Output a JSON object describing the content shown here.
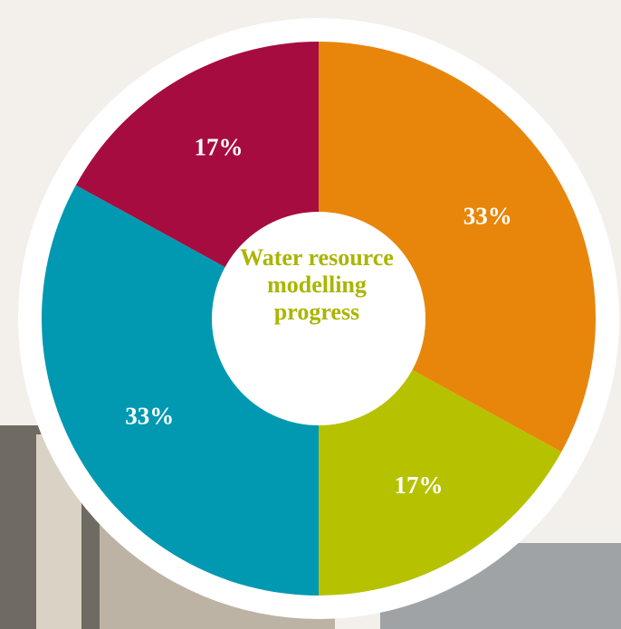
{
  "chart_data": {
    "type": "donut",
    "title": "Water resource modelling progress",
    "values": [
      33,
      17,
      33,
      17
    ],
    "value_labels": [
      "33%",
      "17%",
      "33%",
      "17%"
    ],
    "colors": [
      "#e8860b",
      "#b6c200",
      "#0099b1",
      "#a60c3f"
    ]
  }
}
